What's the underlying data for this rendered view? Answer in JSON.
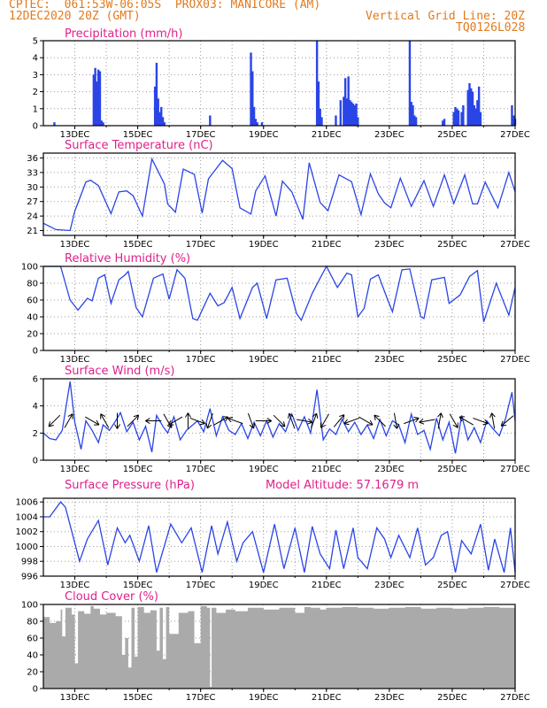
{
  "header": {
    "line1": "CPTEC:  061:53W-06:05S  PROX03: MANICORE (AM)",
    "line2_left": "12DEC2020 20Z (GMT)",
    "line2_right": "Vertical Grid Line: 20Z",
    "line3_right": "TQ0126L028"
  },
  "colors": {
    "series": "#2a45e6",
    "title": "#e0208a",
    "header": "#e07a1f",
    "cloud": "#aaaaaa"
  },
  "chart_data": [
    {
      "type": "bar",
      "title": "Precipitation (mm/h)",
      "ylim": [
        0,
        5
      ],
      "yticks": [
        0,
        1,
        2,
        3,
        4,
        5
      ],
      "xlim": [
        12.0,
        27.0
      ],
      "xticks": [
        "13DEC",
        "15DEC",
        "17DEC",
        "19DEC",
        "21DEC",
        "23DEC",
        "25DEC",
        "27DEC"
      ],
      "x": [
        12.35,
        13.6,
        13.65,
        13.7,
        13.75,
        13.8,
        13.85,
        13.9,
        15.55,
        15.6,
        15.65,
        15.7,
        15.75,
        15.8,
        15.85,
        17.3,
        18.6,
        18.65,
        18.7,
        18.75,
        18.8,
        18.95,
        20.7,
        20.75,
        20.8,
        20.85,
        21.3,
        21.45,
        21.55,
        21.6,
        21.65,
        21.7,
        21.75,
        21.8,
        21.85,
        21.9,
        21.95,
        22.0,
        23.65,
        23.7,
        23.75,
        23.8,
        23.85,
        24.7,
        24.75,
        25.05,
        25.1,
        25.15,
        25.2,
        25.3,
        25.35,
        25.5,
        25.55,
        25.6,
        25.65,
        25.7,
        25.75,
        25.8,
        25.85,
        25.9,
        26.9,
        26.95,
        27.0
      ],
      "values": [
        0.2,
        3.0,
        3.4,
        2.6,
        3.3,
        3.2,
        0.3,
        0.2,
        2.3,
        3.7,
        1.6,
        0.8,
        1.1,
        0.5,
        0.2,
        0.6,
        4.3,
        3.2,
        1.1,
        0.4,
        0.2,
        0.2,
        5.0,
        2.6,
        1.0,
        0.5,
        0.6,
        1.5,
        1.7,
        2.8,
        1.6,
        2.9,
        1.5,
        1.4,
        1.3,
        1.2,
        1.3,
        0.5,
        5.0,
        1.4,
        1.2,
        0.6,
        0.5,
        0.3,
        0.4,
        0.8,
        1.1,
        1.0,
        0.9,
        0.8,
        1.2,
        2.1,
        2.5,
        2.2,
        2.0,
        1.2,
        1.0,
        1.5,
        2.3,
        0.8,
        1.2,
        0.6,
        0.4
      ]
    },
    {
      "type": "line",
      "title": "Surface Temperature (nC)",
      "ylim": [
        20,
        37
      ],
      "yticks": [
        21,
        24,
        27,
        30,
        33,
        36
      ],
      "xlim": [
        12.0,
        27.0
      ],
      "xticks": [
        "13DEC",
        "15DEC",
        "17DEC",
        "19DEC",
        "21DEC",
        "23DEC",
        "25DEC",
        "27DEC"
      ],
      "x": [
        12.0,
        12.4,
        12.85,
        13.0,
        13.35,
        13.5,
        13.75,
        14.15,
        14.4,
        14.65,
        14.85,
        15.15,
        15.45,
        15.85,
        15.95,
        16.2,
        16.45,
        16.8,
        17.05,
        17.25,
        17.7,
        18.0,
        18.25,
        18.6,
        18.75,
        19.05,
        19.4,
        19.6,
        19.9,
        20.25,
        20.45,
        20.8,
        21.05,
        21.4,
        21.8,
        22.1,
        22.4,
        22.65,
        22.85,
        23.05,
        23.35,
        23.7,
        24.1,
        24.4,
        24.75,
        25.05,
        25.4,
        25.65,
        25.8,
        26.05,
        26.45,
        26.8,
        27.0
      ],
      "values": [
        22.5,
        21.2,
        21.0,
        25,
        31,
        31.4,
        30.3,
        24.5,
        29,
        29.2,
        28.2,
        24,
        35.8,
        30.6,
        26.5,
        24.8,
        33.7,
        32.6,
        24.6,
        31.7,
        35.5,
        33.8,
        25.7,
        24.4,
        29.2,
        32.3,
        24,
        31.2,
        29,
        23.3,
        35,
        26.8,
        25.1,
        32.5,
        31.1,
        24.3,
        32.7,
        28.6,
        26.7,
        25.7,
        31.8,
        26,
        31.3,
        26,
        32.5,
        26.6,
        32.5,
        26.5,
        26.5,
        31,
        25.7,
        33,
        29
      ]
    },
    {
      "type": "line",
      "title": "Relative Humidity (%)",
      "ylim": [
        0,
        100
      ],
      "yticks": [
        0,
        20,
        40,
        60,
        80,
        100
      ],
      "xlim": [
        12.0,
        27.0
      ],
      "xticks": [
        "13DEC",
        "15DEC",
        "17DEC",
        "19DEC",
        "21DEC",
        "23DEC",
        "25DEC",
        "27DEC"
      ],
      "x": [
        12.0,
        12.55,
        12.85,
        13.1,
        13.4,
        13.55,
        13.75,
        13.95,
        14.15,
        14.4,
        14.6,
        14.7,
        14.95,
        15.15,
        15.5,
        15.8,
        16.0,
        16.25,
        16.5,
        16.75,
        16.9,
        17.3,
        17.55,
        17.75,
        18.0,
        18.25,
        18.65,
        18.8,
        19.1,
        19.4,
        19.75,
        20.05,
        20.2,
        20.55,
        20.8,
        21.0,
        21.35,
        21.65,
        21.8,
        22.0,
        22.2,
        22.4,
        22.65,
        22.95,
        23.1,
        23.4,
        23.65,
        24.0,
        24.1,
        24.35,
        24.75,
        24.9,
        25.25,
        25.55,
        25.8,
        26.0,
        26.4,
        26.8,
        27.0
      ],
      "values": [
        100,
        100,
        60,
        48,
        62,
        59,
        86,
        90,
        56,
        84,
        90,
        94,
        51,
        40,
        86,
        91,
        61,
        96,
        86,
        38,
        36,
        68,
        53,
        57,
        75,
        38,
        75,
        80,
        38,
        84,
        86,
        44,
        36,
        68,
        86,
        100,
        75,
        92,
        90,
        40,
        50,
        85,
        90,
        60,
        46,
        96,
        97,
        40,
        38,
        84,
        87,
        56,
        66,
        88,
        95,
        34,
        80,
        42,
        75
      ]
    },
    {
      "type": "line",
      "title": "Surface Wind (m/s)",
      "ylim": [
        0,
        6
      ],
      "yticks": [
        0,
        2,
        4,
        6
      ],
      "xlim": [
        12.0,
        27.0
      ],
      "xticks": [
        "13DEC",
        "15DEC",
        "17DEC",
        "19DEC",
        "21DEC",
        "23DEC",
        "25DEC",
        "27DEC"
      ],
      "x": [
        12.0,
        12.2,
        12.4,
        12.6,
        12.85,
        13.0,
        13.2,
        13.35,
        13.55,
        13.75,
        13.9,
        14.1,
        14.3,
        14.45,
        14.65,
        14.85,
        15.05,
        15.25,
        15.45,
        15.6,
        15.8,
        15.95,
        16.15,
        16.35,
        16.55,
        16.75,
        16.9,
        17.1,
        17.3,
        17.5,
        17.7,
        17.9,
        18.1,
        18.3,
        18.5,
        18.7,
        18.9,
        19.1,
        19.3,
        19.5,
        19.7,
        19.9,
        20.1,
        20.3,
        20.5,
        20.7,
        20.9,
        21.1,
        21.3,
        21.5,
        21.7,
        21.9,
        22.1,
        22.3,
        22.5,
        22.7,
        22.9,
        23.1,
        23.3,
        23.5,
        23.7,
        23.9,
        24.1,
        24.3,
        24.5,
        24.7,
        24.9,
        25.1,
        25.3,
        25.5,
        25.7,
        25.9,
        26.1,
        26.3,
        26.5,
        26.7,
        26.9,
        27.0
      ],
      "values": [
        2,
        1.6,
        1.5,
        2.2,
        5.8,
        2.8,
        0.8,
        2.9,
        2.2,
        1.3,
        2.6,
        2.2,
        2.9,
        3.5,
        2.1,
        2.8,
        1.5,
        2.5,
        0.6,
        3.3,
        2.5,
        2.0,
        3.2,
        1.5,
        2.2,
        2.6,
        2.9,
        2.1,
        3.8,
        1.8,
        3.2,
        2.2,
        1.9,
        2.7,
        1.6,
        2.8,
        1.8,
        2.9,
        1.7,
        2.7,
        2.1,
        3.4,
        2.2,
        3.2,
        2.0,
        5.2,
        1.5,
        2.3,
        1.9,
        3.0,
        2.1,
        2.8,
        1.9,
        2.6,
        1.6,
        3.0,
        1.8,
        2.9,
        2.6,
        1.3,
        3.4,
        1.9,
        2.2,
        0.8,
        3.1,
        1.5,
        2.8,
        0.5,
        3.3,
        1.5,
        2.4,
        1.3,
        2.9,
        2.3,
        1.8,
        3.1,
        5.0,
        2.9
      ]
    },
    {
      "type": "line",
      "title": "Surface Pressure (hPa)",
      "annotation": "Model Altitude: 57.1679 m",
      "ylim": [
        996,
        1006.5
      ],
      "yticks": [
        996,
        998,
        1000,
        1002,
        1004,
        1006
      ],
      "xlim": [
        12.0,
        27.0
      ],
      "xticks": [
        "13DEC",
        "15DEC",
        "17DEC",
        "19DEC",
        "21DEC",
        "23DEC",
        "25DEC",
        "27DEC"
      ],
      "x": [
        12.0,
        12.2,
        12.55,
        12.7,
        13.15,
        13.4,
        13.75,
        14.05,
        14.35,
        14.6,
        14.75,
        15.05,
        15.35,
        15.6,
        16.05,
        16.4,
        16.7,
        17.05,
        17.35,
        17.55,
        17.85,
        18.15,
        18.35,
        18.65,
        19.0,
        19.35,
        19.65,
        20.0,
        20.3,
        20.55,
        20.8,
        21.1,
        21.3,
        21.55,
        21.85,
        22.0,
        22.3,
        22.6,
        22.85,
        23.05,
        23.3,
        23.65,
        23.9,
        24.15,
        24.4,
        24.65,
        24.85,
        25.1,
        25.3,
        25.6,
        25.9,
        26.15,
        26.35,
        26.65,
        26.85,
        27.0
      ],
      "values": [
        1004,
        1004,
        1006,
        1005.3,
        998,
        1001,
        1003.5,
        997.5,
        1002.5,
        1000.5,
        1001.5,
        998,
        1002.8,
        996.5,
        1003,
        1000.5,
        1002.5,
        996.5,
        1002.8,
        999,
        1003.3,
        998,
        1000.5,
        1002,
        996.5,
        1003,
        997,
        1002.5,
        996.5,
        1002.7,
        999,
        997,
        1002.2,
        997,
        1002.5,
        998.5,
        997,
        1002.5,
        1001,
        998.5,
        1001.5,
        998.5,
        1002.5,
        997.5,
        998.5,
        1001.5,
        1002,
        996.5,
        1000.8,
        999,
        1003,
        996.8,
        1001,
        996.5,
        1002.5,
        996.5
      ]
    },
    {
      "type": "area",
      "title": "Cloud Cover (%)",
      "ylim": [
        0,
        100
      ],
      "yticks": [
        0,
        20,
        40,
        60,
        80,
        100
      ],
      "xlim": [
        12.0,
        27.0
      ],
      "xticks": [
        "13DEC",
        "15DEC",
        "17DEC",
        "19DEC",
        "21DEC",
        "23DEC",
        "25DEC",
        "27DEC"
      ],
      "x": [
        12.0,
        12.2,
        12.4,
        12.55,
        12.6,
        12.7,
        12.9,
        13.0,
        13.1,
        13.3,
        13.5,
        13.6,
        13.8,
        14.0,
        14.3,
        14.5,
        14.6,
        14.7,
        14.8,
        14.9,
        15.0,
        15.2,
        15.4,
        15.6,
        15.7,
        15.8,
        15.9,
        16.0,
        16.3,
        16.6,
        16.8,
        17.0,
        17.2,
        17.3,
        17.35,
        17.5,
        17.8,
        18.1,
        18.5,
        19.0,
        19.5,
        20.0,
        20.3,
        20.5,
        20.8,
        21.0,
        21.5,
        22.0,
        22.5,
        23.0,
        23.5,
        24.0,
        24.5,
        25.0,
        25.5,
        26.0,
        26.5,
        27.0
      ],
      "values": [
        85,
        78,
        80,
        94,
        62,
        96,
        88,
        30,
        92,
        89,
        98,
        95,
        88,
        90,
        86,
        40,
        60,
        25,
        96,
        38,
        97,
        90,
        93,
        45,
        96,
        35,
        97,
        65,
        90,
        92,
        54,
        98,
        96,
        2,
        96,
        90,
        94,
        92,
        96,
        94,
        96,
        90,
        97,
        96,
        94,
        96,
        97,
        96,
        95,
        96,
        97,
        95,
        96,
        95,
        96,
        97,
        96,
        98
      ]
    }
  ]
}
